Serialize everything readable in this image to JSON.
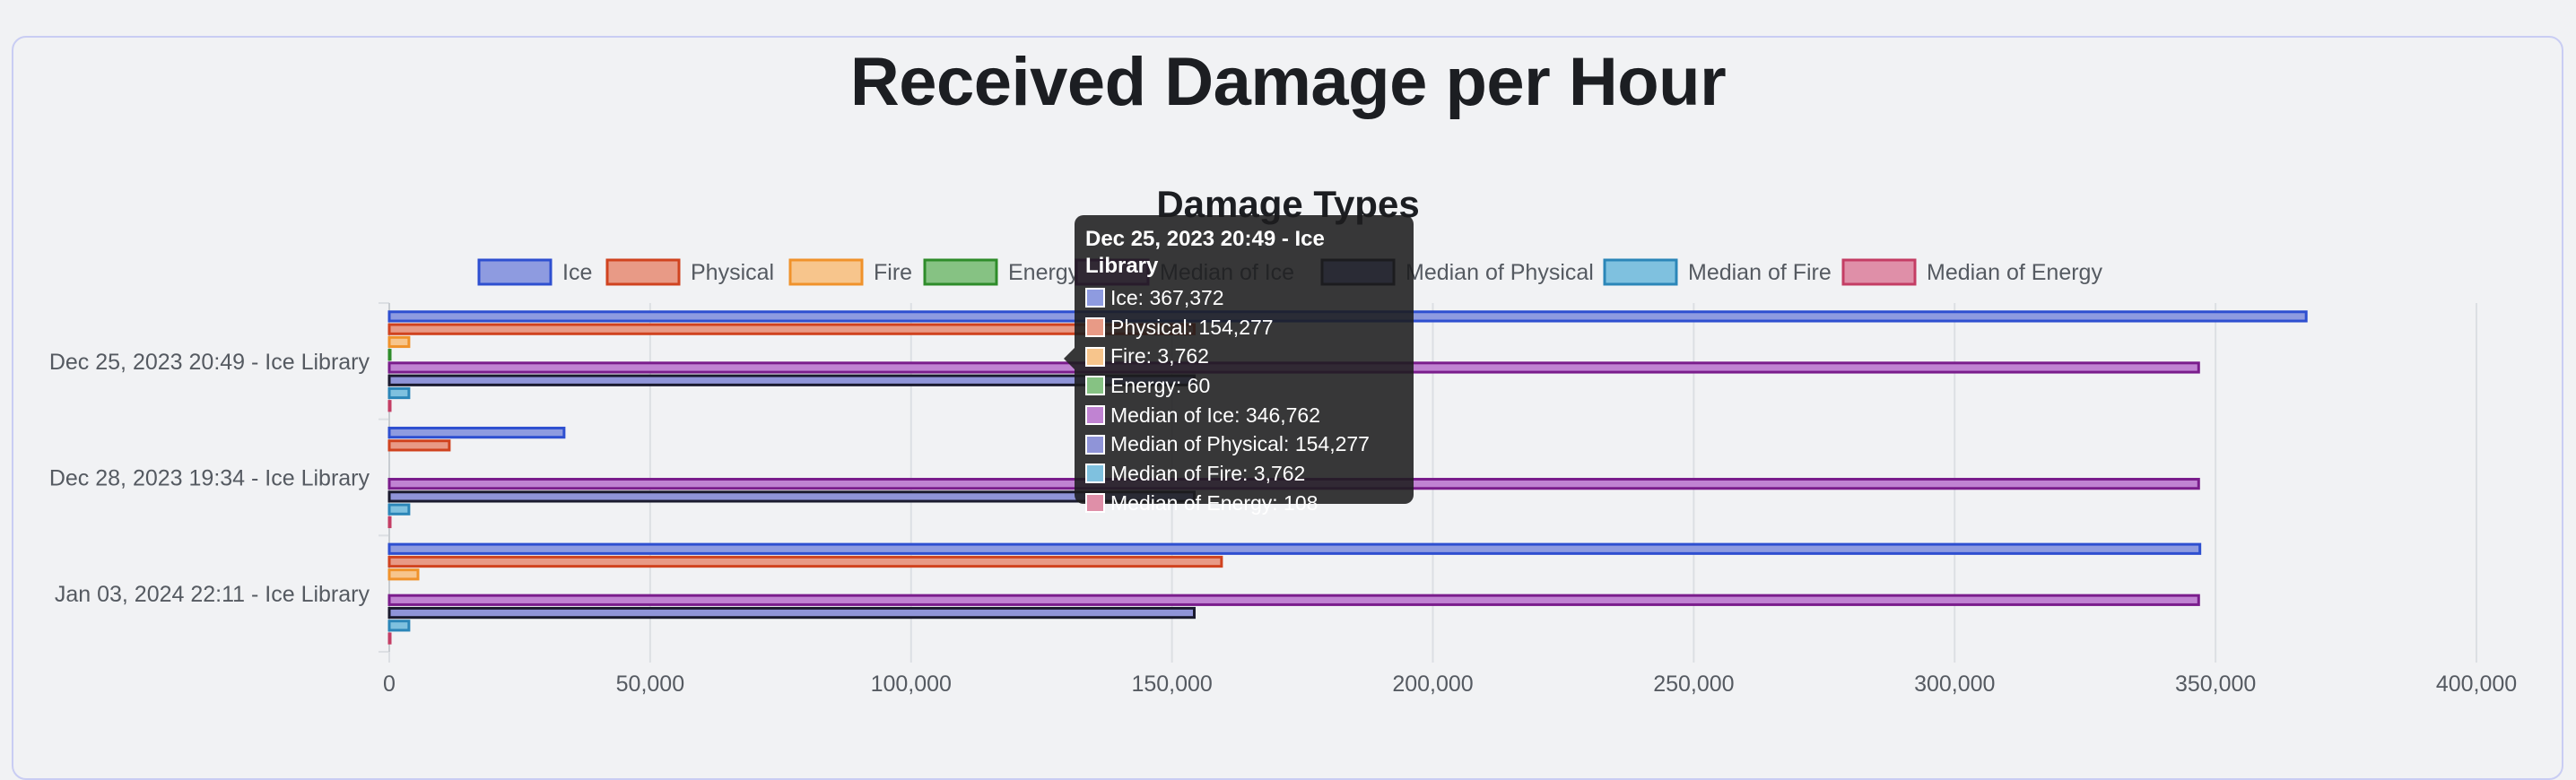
{
  "page": {
    "title": "Received Damage per Hour"
  },
  "chart_data": {
    "type": "bar",
    "orientation": "horizontal",
    "title": "Damage Types",
    "legend_position": "top",
    "grid": true,
    "xlim": [
      0,
      400000
    ],
    "x_ticks": [
      "0",
      "50,000",
      "100,000",
      "150,000",
      "200,000",
      "250,000",
      "300,000",
      "350,000",
      "400,000"
    ],
    "categories": [
      "Dec 25, 2023 20:49 - Ice Library",
      "Dec 28, 2023 19:34 - Ice Library",
      "Jan 03, 2024 22:11 - Ice Library"
    ],
    "series": [
      {
        "name": "Ice",
        "values": [
          367372,
          33500,
          347000
        ],
        "fill": "#8e9be0",
        "stroke": "#2e4fd0"
      },
      {
        "name": "Physical",
        "values": [
          154277,
          11500,
          159500
        ],
        "fill": "#e89a86",
        "stroke": "#d0431f"
      },
      {
        "name": "Fire",
        "values": [
          3762,
          0,
          5500
        ],
        "fill": "#f7c58c",
        "stroke": "#f0922b"
      },
      {
        "name": "Energy",
        "values": [
          60,
          0,
          0
        ],
        "fill": "#86c283",
        "stroke": "#2e8c2a"
      },
      {
        "name": "Median of Ice",
        "values": [
          346762,
          346762,
          346762
        ],
        "fill": "#c083d2",
        "stroke": "#7a1d8c"
      },
      {
        "name": "Median of Physical",
        "values": [
          154277,
          154277,
          154277
        ],
        "fill": "#8f94d8",
        "stroke": "#1a1a2e"
      },
      {
        "name": "Median of Fire",
        "values": [
          3762,
          3762,
          3762
        ],
        "fill": "#7fc1df",
        "stroke": "#2b86b8"
      },
      {
        "name": "Median of Energy",
        "values": [
          108,
          108,
          108
        ],
        "fill": "#df8fa8",
        "stroke": "#c43d64"
      }
    ]
  },
  "tooltip": {
    "title": "Dec 25, 2023 20:49 - Ice Library",
    "rows": [
      {
        "text": "Ice: 367,372",
        "color": "#8e9be0"
      },
      {
        "text": "Physical: 154,277",
        "color": "#e89a86"
      },
      {
        "text": "Fire: 3,762",
        "color": "#f7c58c"
      },
      {
        "text": "Energy: 60",
        "color": "#86c283"
      },
      {
        "text": "Median of Ice: 346,762",
        "color": "#c083d2"
      },
      {
        "text": "Median of Physical: 154,277",
        "color": "#8f94d8"
      },
      {
        "text": "Median of Fire: 3,762",
        "color": "#7fc1df"
      },
      {
        "text": "Median of Energy: 108",
        "color": "#df8fa8"
      }
    ]
  }
}
